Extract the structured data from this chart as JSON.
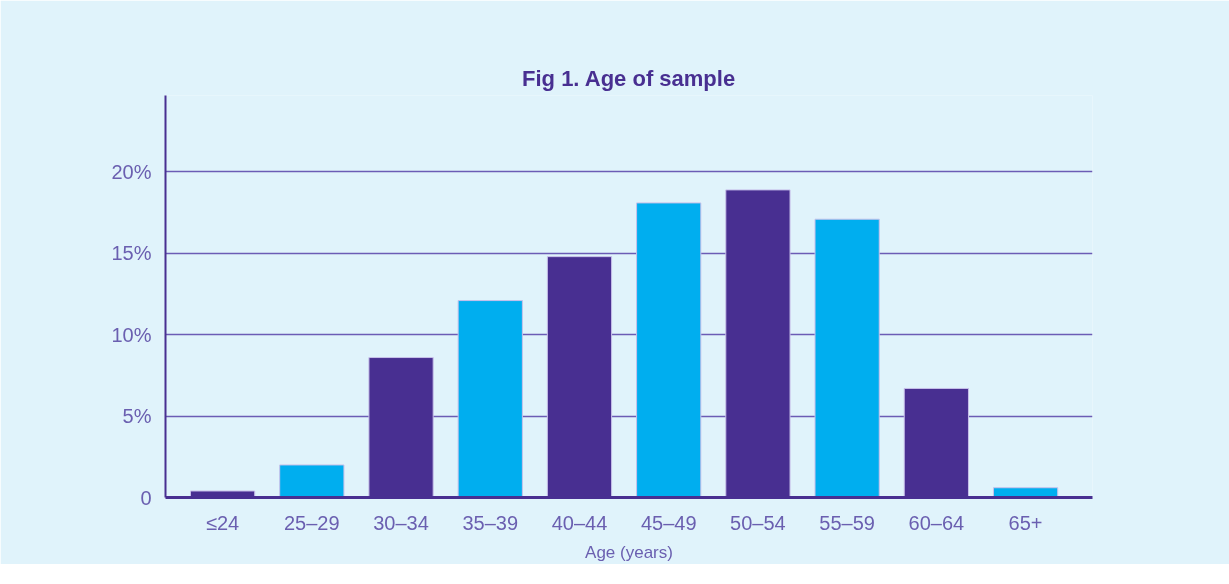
{
  "chart_data": {
    "type": "bar",
    "title": "Fig 1. Age of sample",
    "xlabel": "Age (years)",
    "categories": [
      "≤24",
      "25–29",
      "30–34",
      "35–39",
      "40–44",
      "45–49",
      "50–54",
      "55–59",
      "60–64",
      "65+"
    ],
    "values": [
      0.4,
      2.0,
      8.6,
      12.1,
      14.8,
      18.1,
      18.9,
      17.1,
      6.7,
      0.6
    ],
    "colors": [
      "#482f91",
      "#00aeef",
      "#482f91",
      "#00aeef",
      "#482f91",
      "#00aeef",
      "#482f91",
      "#00aeef",
      "#482f91",
      "#00aeef"
    ],
    "ylim": [
      0,
      24.7
    ],
    "yticks": [
      0,
      {
        "value": 5,
        "label": "5%"
      },
      {
        "value": 10,
        "label": "10%"
      },
      {
        "value": 15,
        "label": "15%"
      },
      {
        "value": 20,
        "label": "20%"
      }
    ],
    "grid": "y"
  }
}
